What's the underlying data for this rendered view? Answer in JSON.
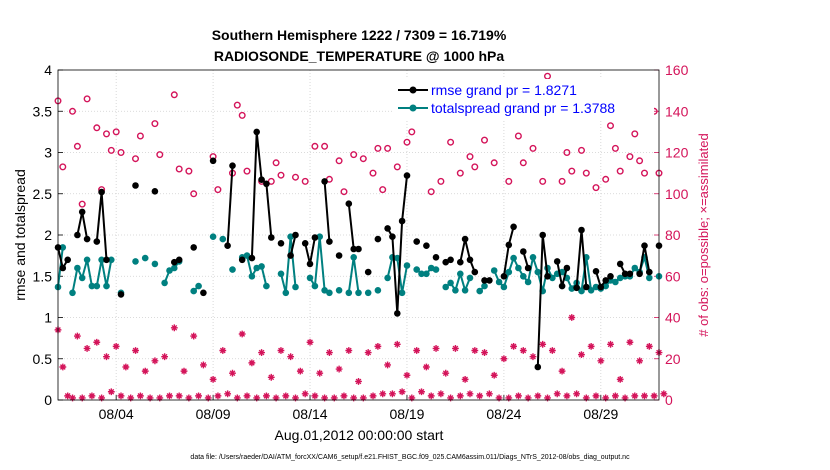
{
  "chart_data": {
    "type": "line",
    "title": "Southern Hemisphere 1222 / 7309 = 16.719%",
    "subtitle": "RADIOSONDE_TEMPERATURE @ 1000 hPa",
    "xlabel": "Aug.01,2012 00:00:00 start",
    "ylabel_left": "rmse and totalspread",
    "ylabel_right": "# of obs: o=possible; ×=assimilated",
    "footer": "data file: /Users/raeder/DAI/ATM_forcXX/CAM6_setup/f.e21.FHIST_BGC.f09_025.CAM6assim.011/Diags_NTrS_2012-08/obs_diag_output.nc",
    "x_ticks": [
      {
        "day": 4,
        "label": "08/04"
      },
      {
        "day": 9,
        "label": "08/09"
      },
      {
        "day": 14,
        "label": "08/14"
      },
      {
        "day": 19,
        "label": "08/19"
      },
      {
        "day": 24,
        "label": "08/24"
      },
      {
        "day": 29,
        "label": "08/29"
      }
    ],
    "xlim": [
      1,
      32
    ],
    "ylim_left": [
      0,
      4
    ],
    "ylim_right": [
      0,
      160
    ],
    "y_ticks_left": [
      "0",
      "0.5",
      "1",
      "1.5",
      "2",
      "2.5",
      "3",
      "3.5",
      "4"
    ],
    "y_ticks_right": [
      "0",
      "20",
      "40",
      "60",
      "80",
      "100",
      "120",
      "140",
      "160"
    ],
    "grid": true,
    "legend_position": "top-right",
    "legend": [
      {
        "label": "rmse grand pr = 1.8271",
        "color": "#000000"
      },
      {
        "label": "totalspread grand pr = 1.3788",
        "color": "#008080"
      }
    ],
    "colors": {
      "rmse": "#000000",
      "spread": "#008080",
      "obs": "#d4145a",
      "legend_text": "#0000ff"
    },
    "x_offsets": [
      0,
      0.25,
      0.5,
      0.75
    ],
    "series": [
      {
        "name": "rmse",
        "values": [
          [
            1.85,
            1.6,
            1.7,
            null
          ],
          [
            2.0,
            2.28,
            1.95,
            null
          ],
          [
            1.92,
            2.52,
            1.7,
            null
          ],
          [
            null,
            1.28,
            null,
            null
          ],
          [
            2.6,
            null,
            null,
            null
          ],
          [
            2.53,
            null,
            null,
            null
          ],
          [
            1.67,
            1.7,
            null,
            null
          ],
          [
            1.85,
            null,
            1.3,
            null
          ],
          [
            2.9,
            null,
            null,
            1.87
          ],
          [
            2.84,
            null,
            1.7,
            null
          ],
          [
            1.72,
            3.25,
            2.67,
            2.62
          ],
          [
            1.97,
            null,
            1.9,
            null
          ],
          [
            1.75,
            2.0,
            null,
            1.9
          ],
          [
            1.65,
            1.97,
            null,
            2.65
          ],
          [
            1.92,
            null,
            1.75,
            null
          ],
          [
            2.38,
            1.83,
            1.83,
            null
          ],
          [
            1.55,
            null,
            1.95,
            null
          ],
          [
            2.08,
            1.98,
            1.05,
            2.17
          ],
          [
            2.72,
            null,
            1.92,
            null
          ],
          [
            1.87,
            null,
            1.73,
            null
          ],
          [
            1.67,
            1.7,
            null,
            1.67
          ],
          [
            1.95,
            1.7,
            1.55,
            null
          ],
          [
            1.45,
            1.45,
            null,
            null
          ],
          [
            1.5,
            1.88,
            2.1,
            null
          ],
          [
            1.8,
            1.6,
            null,
            0.4
          ],
          [
            2.0,
            1.5,
            null,
            1.68
          ],
          [
            1.38,
            1.6,
            null,
            1.36
          ],
          [
            2.06,
            1.37,
            null,
            1.56
          ],
          [
            1.37,
            1.45,
            1.5,
            null
          ],
          [
            1.65,
            1.53,
            1.53,
            null
          ],
          [
            1.53,
            1.87,
            1.55,
            null
          ],
          [
            1.87,
            null,
            null,
            null
          ]
        ]
      },
      {
        "name": "totalspread",
        "values": [
          [
            1.37,
            1.85,
            null,
            1.3
          ],
          [
            1.6,
            1.48,
            1.7,
            1.38
          ],
          [
            1.38,
            1.7,
            1.38,
            1.7
          ],
          [
            null,
            1.3,
            null,
            null
          ],
          [
            1.68,
            null,
            1.72,
            null
          ],
          [
            1.65,
            null,
            1.42,
            1.57
          ],
          [
            1.6,
            1.68,
            null,
            null
          ],
          [
            1.32,
            1.38,
            null,
            null
          ],
          [
            1.98,
            null,
            1.95,
            null
          ],
          [
            1.58,
            null,
            1.73,
            1.75
          ],
          [
            1.5,
            1.6,
            1.62,
            1.38
          ],
          [
            null,
            null,
            1.53,
            1.3
          ],
          [
            1.98,
            1.37,
            null,
            null
          ],
          [
            1.48,
            1.38,
            1.98,
            1.33
          ],
          [
            1.3,
            null,
            1.33,
            null
          ],
          [
            1.3,
            1.73,
            1.3,
            null
          ],
          [
            1.3,
            null,
            1.33,
            null
          ],
          [
            1.48,
            1.73,
            1.72,
            1.3
          ],
          [
            1.63,
            null,
            1.58,
            1.53
          ],
          [
            1.53,
            1.6,
            1.58,
            null
          ],
          [
            1.37,
            1.42,
            1.33,
            1.53
          ],
          [
            1.33,
            1.48,
            null,
            1.32
          ],
          [
            1.38,
            null,
            1.57,
            1.43
          ],
          [
            1.37,
            1.55,
            1.72,
            1.6
          ],
          [
            1.5,
            1.43,
            1.73,
            1.55
          ],
          [
            1.32,
            1.6,
            1.48,
            1.53
          ],
          [
            1.55,
            1.48,
            1.35,
            1.42
          ],
          [
            1.32,
            1.73,
            1.33,
            1.37
          ],
          [
            1.35,
            1.38,
            1.45,
            1.43
          ],
          [
            1.48,
            1.5,
            1.5,
            1.6
          ],
          [
            1.55,
            1.73,
            1.48,
            null
          ],
          [
            1.5,
            null,
            null,
            null
          ]
        ]
      },
      {
        "name": "possible",
        "values": [
          [
            145,
            113,
            null,
            140
          ],
          [
            123,
            95,
            146,
            null
          ],
          [
            132,
            102,
            129,
            121
          ],
          [
            130,
            120,
            null,
            null
          ],
          [
            117,
            128,
            null,
            null
          ],
          [
            134,
            119,
            null,
            null
          ],
          [
            148,
            112,
            null,
            111
          ],
          [
            100,
            null,
            null,
            null
          ],
          [
            118,
            102,
            null,
            null
          ],
          [
            110,
            143,
            138,
            111
          ],
          [
            null,
            null,
            106,
            null
          ],
          [
            106,
            115,
            109,
            null
          ],
          [
            null,
            108,
            null,
            106
          ],
          [
            null,
            123,
            null,
            123
          ],
          [
            107,
            null,
            116,
            101
          ],
          [
            null,
            119,
            null,
            117
          ],
          [
            null,
            110,
            122,
            102
          ],
          [
            122,
            null,
            113,
            null
          ],
          [
            125,
            130,
            null,
            null
          ],
          [
            null,
            101,
            null,
            106
          ],
          [
            null,
            125,
            null,
            110
          ],
          [
            null,
            118,
            113,
            null
          ],
          [
            126,
            null,
            115,
            null
          ],
          [
            null,
            106,
            null,
            128
          ],
          [
            115,
            138,
            122,
            null
          ],
          [
            106,
            157,
            null,
            null
          ],
          [
            106,
            120,
            111,
            139
          ],
          [
            121,
            110,
            null,
            103
          ],
          [
            null,
            107,
            133,
            122
          ],
          [
            111,
            null,
            118,
            129
          ],
          [
            116,
            110,
            null,
            140
          ],
          [
            110,
            null,
            null,
            null
          ]
        ]
      },
      {
        "name": "assimilated",
        "values": [
          [
            34,
            16,
            2,
            1
          ],
          [
            31,
            1,
            25,
            2
          ],
          [
            28,
            1,
            21,
            4
          ],
          [
            26,
            2,
            16,
            1
          ],
          [
            24,
            2,
            14,
            1
          ],
          [
            19,
            1,
            21,
            2
          ],
          [
            35,
            2,
            14,
            1
          ],
          [
            31,
            2,
            17,
            1
          ],
          [
            10,
            2,
            24,
            3
          ],
          [
            13,
            1,
            32,
            2
          ],
          [
            18,
            1,
            23,
            2
          ],
          [
            11,
            1,
            24,
            2
          ],
          [
            21,
            1,
            14,
            3
          ],
          [
            28,
            2,
            13,
            1
          ],
          [
            23,
            1,
            15,
            2
          ],
          [
            24,
            1,
            9,
            1
          ],
          [
            23,
            2,
            26,
            3
          ],
          [
            17,
            3,
            27,
            4
          ],
          [
            12,
            1,
            24,
            4
          ],
          [
            16,
            2,
            25,
            3
          ],
          [
            13,
            1,
            25,
            2
          ],
          [
            10,
            3,
            24,
            2
          ],
          [
            23,
            3,
            12,
            1
          ],
          [
            20,
            1,
            26,
            2
          ],
          [
            24,
            1,
            21,
            2
          ],
          [
            27,
            1,
            24,
            3
          ],
          [
            14,
            2,
            40,
            3
          ],
          [
            22,
            1,
            26,
            2
          ],
          [
            19,
            1,
            27,
            2
          ],
          [
            10,
            1,
            28,
            2
          ],
          [
            19,
            2,
            26,
            2
          ],
          [
            23,
            3,
            null,
            null
          ]
        ]
      }
    ]
  }
}
